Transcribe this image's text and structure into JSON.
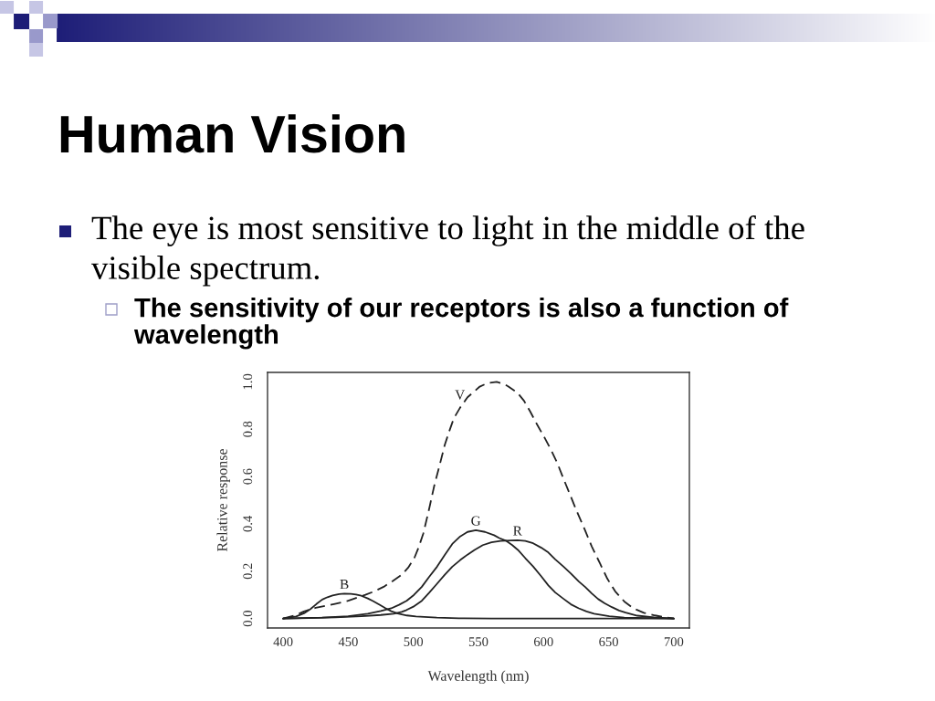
{
  "chart_data": {
    "type": "line",
    "title": "Human Vision",
    "subtitle": "The eye is most sensitive to light in the middle of the visible spectrum.",
    "annotations": [
      "The sensitivity of our receptors is also a function of wavelength"
    ],
    "xlabel": "Wavelength (nm)",
    "ylabel": "Relative response",
    "xlim": [
      388,
      712
    ],
    "ylim": [
      -0.04,
      1.04
    ],
    "xticks": [
      400,
      450,
      500,
      550,
      600,
      650,
      700
    ],
    "yticks": [
      {
        "value": 0,
        "label": "0.0"
      },
      {
        "value": 0.2,
        "label": "0.2"
      },
      {
        "value": 0.4,
        "label": "0.4"
      },
      {
        "value": 0.6,
        "label": "0.6"
      },
      {
        "value": 0.8,
        "label": "0.8"
      },
      {
        "value": 1,
        "label": "1.0"
      }
    ],
    "series": [
      {
        "name": "V",
        "color": "#222222",
        "line_style": "dashed",
        "x": [
          400,
          410,
          416,
          425,
          439.8,
          450,
          463.2,
          470,
          477.2,
          484,
          491.3,
          496,
          500.7,
          504,
          507.7,
          512.4,
          516,
          520.5,
          524.1,
          527.5,
          531,
          535.8,
          541.6,
          551,
          557,
          564,
          570,
          573,
          580,
          585,
          589.6,
          595,
          601.3,
          606,
          610.7,
          615,
          620,
          625,
          631.7,
          637,
          643.4,
          649,
          655,
          662,
          669,
          677,
          685.6,
          693,
          700
        ],
        "values": [
          0,
          0.015,
          0.03,
          0.045,
          0.062,
          0.075,
          0.1,
          0.115,
          0.134,
          0.158,
          0.186,
          0.215,
          0.255,
          0.3,
          0.36,
          0.47,
          0.56,
          0.655,
          0.733,
          0.79,
          0.845,
          0.89,
          0.935,
          0.98,
          0.995,
          1.0,
          0.99,
          0.98,
          0.954,
          0.92,
          0.876,
          0.82,
          0.759,
          0.71,
          0.655,
          0.595,
          0.528,
          0.46,
          0.375,
          0.305,
          0.232,
          0.168,
          0.115,
          0.072,
          0.043,
          0.024,
          0.013,
          0.005,
          0
        ]
      },
      {
        "name": "G",
        "color": "#222222",
        "line_style": "solid",
        "x": [
          400,
          430,
          450,
          465,
          475,
          483,
          489,
          494.8,
          500.5,
          506.5,
          512,
          518.2,
          524,
          529.9,
          536,
          541.6,
          548,
          555,
          562,
          566,
          571,
          576,
          580.3,
          586,
          592,
          598,
          603.7,
          609,
          615.4,
          621,
          627.1,
          633,
          638.8,
          650.5,
          662,
          700
        ],
        "values": [
          0,
          0.004,
          0.01,
          0.02,
          0.032,
          0.043,
          0.058,
          0.075,
          0.1,
          0.134,
          0.175,
          0.219,
          0.268,
          0.315,
          0.347,
          0.366,
          0.373,
          0.366,
          0.352,
          0.34,
          0.329,
          0.31,
          0.29,
          0.255,
          0.22,
          0.18,
          0.14,
          0.11,
          0.083,
          0.06,
          0.043,
          0.03,
          0.02,
          0.01,
          0.004,
          0
        ]
      },
      {
        "name": "R",
        "color": "#222222",
        "line_style": "solid",
        "x": [
          400,
          420,
          440,
          460,
          475,
          485,
          491,
          494.8,
          500,
          506.5,
          512,
          518.2,
          524,
          529.9,
          536,
          541.6,
          547,
          553.3,
          560,
          567,
          575,
          580,
          586,
          592,
          598,
          603.7,
          609,
          615.4,
          621,
          627.1,
          632,
          637,
          642,
          647,
          652.5,
          658,
          663,
          672,
          685,
          700
        ],
        "values": [
          0,
          0.002,
          0.005,
          0.01,
          0.015,
          0.02,
          0.028,
          0.036,
          0.05,
          0.075,
          0.108,
          0.147,
          0.184,
          0.219,
          0.247,
          0.27,
          0.29,
          0.31,
          0.322,
          0.328,
          0.33,
          0.331,
          0.328,
          0.318,
          0.3,
          0.279,
          0.25,
          0.219,
          0.19,
          0.156,
          0.133,
          0.106,
          0.082,
          0.064,
          0.048,
          0.034,
          0.025,
          0.012,
          0.005,
          0
        ]
      },
      {
        "name": "B",
        "color": "#222222",
        "line_style": "solid",
        "x": [
          400,
          410,
          416,
          421,
          425.5,
          430,
          434,
          438,
          443,
          447,
          452,
          456,
          460,
          465,
          469,
          474,
          478.5,
          483,
          488,
          495,
          502,
          518,
          535,
          560,
          600,
          650,
          700
        ],
        "values": [
          0,
          0.009,
          0.022,
          0.04,
          0.061,
          0.08,
          0.09,
          0.097,
          0.103,
          0.105,
          0.104,
          0.101,
          0.096,
          0.085,
          0.074,
          0.058,
          0.044,
          0.031,
          0.021,
          0.013,
          0.009,
          0.004,
          0.001,
          0,
          0,
          0,
          0
        ]
      }
    ]
  }
}
